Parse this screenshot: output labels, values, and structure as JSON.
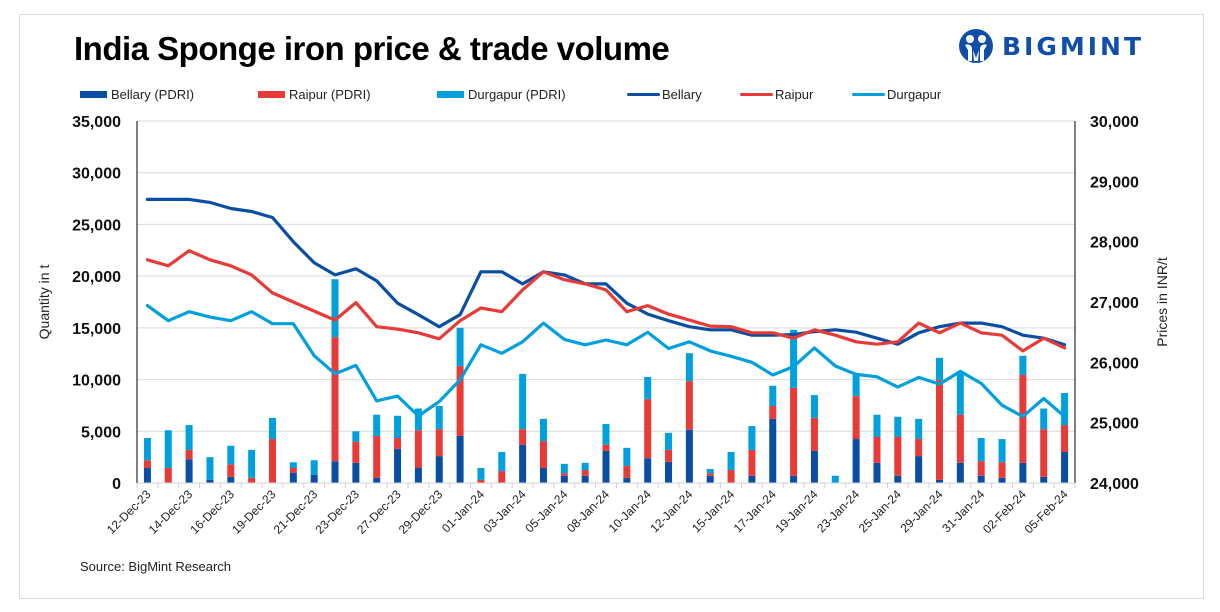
{
  "header": {
    "title": "India Sponge iron price & trade volume",
    "logo_text": "BIGMINT"
  },
  "legend": [
    {
      "label": "Bellary (PDRI)",
      "kind": "bar",
      "color": "#0a4ea3"
    },
    {
      "label": "Raipur (PDRI)",
      "kind": "bar",
      "color": "#e83a36"
    },
    {
      "label": "Durgapur (PDRI)",
      "kind": "bar",
      "color": "#00a0de"
    },
    {
      "label": "Bellary",
      "kind": "line",
      "color": "#0a4ea3"
    },
    {
      "label": "Raipur",
      "kind": "line",
      "color": "#e83a36"
    },
    {
      "label": "Durgapur",
      "kind": "line",
      "color": "#00a0de"
    }
  ],
  "footer": {
    "source": "Source: BigMint Research"
  },
  "chart_data": {
    "type": "bar",
    "subtype": "stacked bar (left axis) + line (right axis)",
    "title": "India Sponge iron price & trade volume",
    "xlabel": "",
    "ylabel": "Quantity in t",
    "y2label": "Prices in INR/t",
    "ylim": [
      0,
      35000
    ],
    "y2lim": [
      24000,
      30000
    ],
    "yticks": [
      "0",
      "5,000",
      "10,000",
      "15,000",
      "20,000",
      "25,000",
      "30,000",
      "35,000"
    ],
    "y2ticks": [
      "24,000",
      "25,000",
      "26,000",
      "27,000",
      "28,000",
      "29,000",
      "30,000"
    ],
    "grid": true,
    "legend_position": "top",
    "categories": [
      "12-Dec-23",
      "",
      "14-Dec-23",
      "",
      "16-Dec-23",
      "",
      "19-Dec-23",
      "",
      "21-Dec-23",
      "",
      "23-Dec-23",
      "",
      "27-Dec-23",
      "",
      "29-Dec-23",
      "",
      "01-Jan-24",
      "",
      "03-Jan-24",
      "",
      "05-Jan-24",
      "",
      "08-Jan-24",
      "",
      "10-Jan-24",
      "",
      "12-Jan-24",
      "",
      "15-Jan-24",
      "",
      "17-Jan-24",
      "",
      "19-Jan-24",
      "",
      "23-Jan-24",
      "",
      "25-Jan-24",
      "",
      "29-Jan-24",
      "",
      "31-Jan-24",
      "",
      "02-Feb-24",
      "",
      "05-Feb-24"
    ],
    "bar_series": [
      {
        "name": "Bellary (PDRI)",
        "color": "#0a4ea3",
        "axis": "left",
        "values": [
          1450,
          0,
          2300,
          300,
          600,
          0,
          0,
          1000,
          800,
          2100,
          1950,
          500,
          3300,
          1450,
          2600,
          4550,
          0,
          0,
          3700,
          1450,
          700,
          700,
          3100,
          500,
          2400,
          2050,
          5150,
          700,
          0,
          700,
          6200,
          700,
          3100,
          0,
          4250,
          1950,
          700,
          2600,
          300,
          1950,
          700,
          500,
          1950,
          600,
          3000
        ]
      },
      {
        "name": "Raipur (PDRI)",
        "color": "#e83a36",
        "axis": "left",
        "values": [
          750,
          1450,
          900,
          0,
          1200,
          500,
          4250,
          450,
          0,
          12000,
          2050,
          4050,
          1050,
          3650,
          2600,
          6750,
          300,
          1150,
          1500,
          2600,
          250,
          550,
          600,
          1150,
          5700,
          1150,
          4700,
          250,
          1250,
          2500,
          1250,
          8500,
          3200,
          0,
          4150,
          2500,
          3750,
          1650,
          9650,
          4650,
          1400,
          1500,
          8500,
          4600,
          2600
        ]
      },
      {
        "name": "Durgapur (PDRI)",
        "color": "#00a0de",
        "axis": "left",
        "values": [
          2150,
          3650,
          2400,
          2200,
          1800,
          2700,
          2050,
          550,
          1400,
          5600,
          1000,
          2050,
          2150,
          2100,
          2250,
          3700,
          1150,
          1850,
          5350,
          2150,
          900,
          700,
          2000,
          1750,
          2150,
          1650,
          2700,
          400,
          1750,
          2300,
          1950,
          5600,
          2200,
          700,
          2050,
          2150,
          1950,
          1950,
          2150,
          4000,
          2250,
          2250,
          1850,
          2000,
          3100
        ]
      }
    ],
    "line_series": [
      {
        "name": "Bellary",
        "color": "#0a4ea3",
        "axis": "right",
        "values": [
          28700,
          28700,
          28700,
          28650,
          28550,
          28500,
          28400,
          28000,
          27650,
          27450,
          27550,
          27350,
          26980,
          26790,
          26590,
          26790,
          27500,
          27500,
          27300,
          27500,
          27450,
          27300,
          27300,
          26980,
          26800,
          26690,
          26590,
          26540,
          26540,
          26450,
          26450,
          26460,
          26510,
          26540,
          26500,
          26400,
          26300,
          26490,
          26590,
          26650,
          26650,
          26590,
          26450,
          26400,
          26290
        ]
      },
      {
        "name": "Raipur",
        "color": "#e83a36",
        "axis": "right",
        "values": [
          27700,
          27600,
          27850,
          27700,
          27600,
          27450,
          27150,
          27000,
          26850,
          26700,
          26990,
          26590,
          26550,
          26490,
          26390,
          26690,
          26900,
          26840,
          27200,
          27500,
          27370,
          27300,
          27200,
          26840,
          26940,
          26800,
          26700,
          26600,
          26590,
          26490,
          26490,
          26400,
          26540,
          26450,
          26340,
          26300,
          26340,
          26650,
          26490,
          26650,
          26490,
          26450,
          26190,
          26400,
          26240
        ]
      },
      {
        "name": "Durgapur",
        "color": "#00a0de",
        "axis": "right",
        "values": [
          26940,
          26690,
          26840,
          26750,
          26690,
          26840,
          26640,
          26640,
          26110,
          25810,
          25950,
          25360,
          25440,
          25110,
          25350,
          25710,
          26290,
          26150,
          26340,
          26650,
          26380,
          26290,
          26370,
          26290,
          26500,
          26230,
          26340,
          26190,
          26100,
          26000,
          25790,
          25930,
          26240,
          25940,
          25800,
          25760,
          25590,
          25750,
          25640,
          25850,
          25650,
          25290,
          25100,
          25400,
          25100
        ]
      }
    ]
  }
}
